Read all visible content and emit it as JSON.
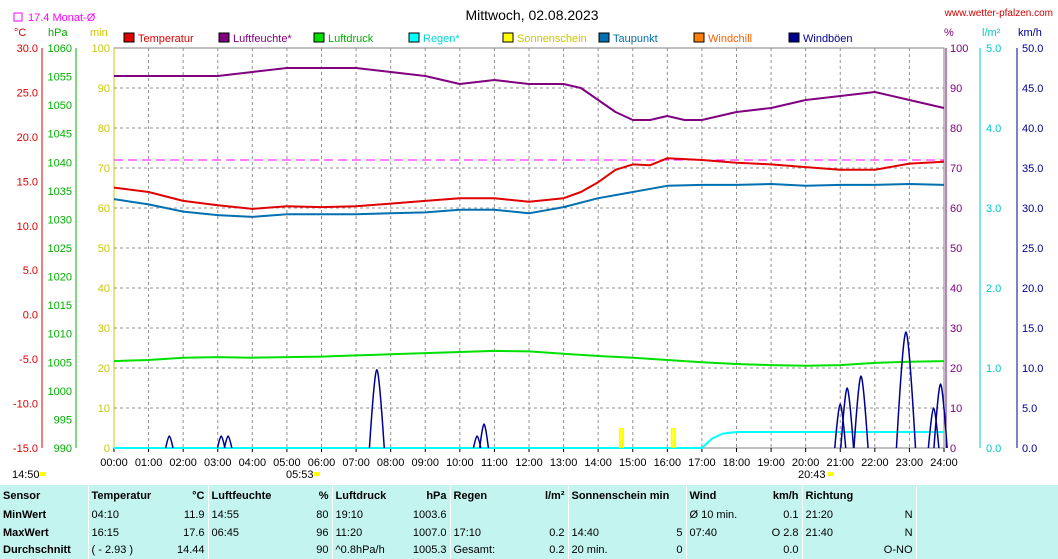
{
  "header": {
    "title": "Mittwoch, 02.08.2023",
    "site": "www.wetter-pfalzen.com",
    "monthly_avg": "17.4 Monat-Ø",
    "sunrise": "05:53",
    "sunset": "20:43",
    "update_time": "14:50"
  },
  "units": {
    "temp": "°C",
    "pressure": "hPa",
    "sunshine": "min",
    "humidity": "%",
    "rain": "l/m²",
    "wind": "km/h"
  },
  "colors": {
    "temperatur": "#e00000",
    "luftfeuchte": "#800080",
    "luftdruck": "#00e000",
    "regen": "#00ffff",
    "sonnenschein": "#ffff00",
    "taupunkt": "#0070b0",
    "windchill": "#ff8000",
    "windboeen": "#000090",
    "monthly": "#ff00ff",
    "summary_bg": "#c4f4f0"
  },
  "chart_data": {
    "type": "line",
    "x_ticks": [
      "00:00",
      "01:00",
      "02:00",
      "03:00",
      "04:00",
      "05:00",
      "06:00",
      "07:00",
      "08:00",
      "09:00",
      "10:00",
      "11:00",
      "12:00",
      "13:00",
      "14:00",
      "15:00",
      "16:00",
      "17:00",
      "18:00",
      "19:00",
      "20:00",
      "21:00",
      "22:00",
      "23:00",
      "24:00"
    ],
    "axes": {
      "temp": {
        "ticks": [
          "30.0",
          "25.0",
          "20.0",
          "15.0",
          "10.0",
          "5.0",
          "0.0",
          "-5.0",
          "-10.0",
          "-15.0"
        ],
        "range": [
          -15,
          30
        ]
      },
      "pressure": {
        "ticks": [
          "1060",
          "1055",
          "1050",
          "1045",
          "1040",
          "1035",
          "1030",
          "1025",
          "1020",
          "1015",
          "1010",
          "1005",
          "1000",
          "995",
          "990"
        ],
        "range": [
          990,
          1060
        ]
      },
      "sunshine": {
        "ticks": [
          "100",
          "90",
          "80",
          "70",
          "60",
          "50",
          "40",
          "30",
          "20",
          "10",
          "0"
        ],
        "range": [
          0,
          100
        ]
      },
      "humidity": {
        "ticks": [
          "100",
          "90",
          "80",
          "70",
          "60",
          "50",
          "40",
          "30",
          "20",
          "10",
          "0"
        ],
        "range": [
          0,
          100
        ]
      },
      "rain": {
        "ticks": [
          "5.0",
          "4.0",
          "3.0",
          "2.0",
          "1.0",
          "0.0"
        ],
        "range": [
          0,
          5
        ]
      },
      "wind": {
        "ticks": [
          "50.0",
          "45.0",
          "40.0",
          "35.0",
          "30.0",
          "25.0",
          "20.0",
          "15.0",
          "10.0",
          "5.0",
          "0.0"
        ],
        "range": [
          0,
          50
        ]
      }
    },
    "legend": [
      "Temperatur",
      "Luftfeuchte*",
      "Luftdruck",
      "Regen*",
      "Sonnenschein",
      "Taupunkt",
      "Windchill",
      "Windböen"
    ],
    "monthly_avg_temp": 17.4,
    "series": [
      {
        "name": "Temperatur",
        "axis": "temp",
        "x": [
          0,
          1,
          2,
          3,
          4,
          5,
          6,
          7,
          8,
          9,
          10,
          11,
          12,
          13,
          13.5,
          14,
          14.5,
          15,
          15.5,
          16,
          16.5,
          17,
          18,
          19,
          20,
          21,
          22,
          23,
          24
        ],
        "values": [
          14.3,
          13.8,
          12.8,
          12.3,
          11.9,
          12.2,
          12.1,
          12.2,
          12.5,
          12.8,
          13.1,
          13.1,
          12.7,
          13.1,
          13.8,
          14.9,
          16.3,
          16.9,
          16.8,
          17.6,
          17.5,
          17.4,
          17.1,
          16.9,
          16.6,
          16.3,
          16.3,
          17.0,
          17.2
        ]
      },
      {
        "name": "Luftfeuchte*",
        "axis": "humidity",
        "x": [
          0,
          1,
          2,
          3,
          4,
          5,
          6,
          7,
          8,
          9,
          10,
          11,
          12,
          13,
          13.5,
          14,
          14.5,
          15,
          15.5,
          16,
          16.5,
          17,
          18,
          19,
          20,
          21,
          22,
          23,
          24
        ],
        "values": [
          93,
          93,
          93,
          93,
          94,
          95,
          95,
          95,
          94,
          93,
          91,
          92,
          91,
          91,
          90,
          87,
          84,
          82,
          82,
          83,
          82,
          82,
          84,
          85,
          87,
          88,
          89,
          87,
          85
        ]
      },
      {
        "name": "Luftdruck",
        "axis": "pressure",
        "x": [
          0,
          1,
          2,
          3,
          4,
          5,
          6,
          7,
          8,
          9,
          10,
          11,
          12,
          13,
          14,
          15,
          16,
          17,
          18,
          19,
          20,
          21,
          22,
          23,
          24
        ],
        "values": [
          1005.2,
          1005.4,
          1005.8,
          1005.9,
          1005.8,
          1005.9,
          1006.0,
          1006.2,
          1006.4,
          1006.6,
          1006.8,
          1007.0,
          1006.9,
          1006.5,
          1006.1,
          1005.8,
          1005.4,
          1005.0,
          1004.7,
          1004.5,
          1004.4,
          1004.5,
          1004.9,
          1005.1,
          1005.2
        ]
      },
      {
        "name": "Taupunkt",
        "axis": "temp",
        "x": [
          0,
          1,
          2,
          3,
          4,
          5,
          6,
          7,
          8,
          9,
          10,
          11,
          12,
          13,
          14,
          15,
          16,
          17,
          18,
          19,
          20,
          21,
          22,
          23,
          24
        ],
        "values": [
          13.0,
          12.4,
          11.6,
          11.2,
          11.0,
          11.3,
          11.3,
          11.3,
          11.4,
          11.5,
          11.8,
          11.8,
          11.4,
          12.1,
          13.1,
          13.8,
          14.5,
          14.6,
          14.6,
          14.7,
          14.5,
          14.6,
          14.6,
          14.7,
          14.6
        ]
      },
      {
        "name": "Regen*",
        "axis": "rain",
        "x": [
          0,
          17,
          17.3,
          17.6,
          18,
          19,
          20,
          21,
          22,
          23,
          24
        ],
        "values": [
          0,
          0,
          0.12,
          0.18,
          0.2,
          0.2,
          0.2,
          0.2,
          0.2,
          0.2,
          0.2
        ]
      },
      {
        "name": "Windböen",
        "axis": "wind",
        "bursts": [
          [
            1.6,
            1.5
          ],
          [
            3.1,
            1.5
          ],
          [
            3.3,
            1.5
          ],
          [
            7.6,
            9.8
          ],
          [
            10.5,
            1.5
          ],
          [
            10.7,
            3.0
          ],
          [
            21.0,
            5.5
          ],
          [
            21.2,
            7.5
          ],
          [
            21.6,
            9.0
          ],
          [
            22.9,
            14.5
          ],
          [
            23.7,
            5.0
          ],
          [
            23.9,
            8.0
          ]
        ]
      },
      {
        "name": "Sonnenschein",
        "axis": "sunshine",
        "bars": [
          [
            14.6,
            5
          ],
          [
            16.1,
            5
          ]
        ]
      }
    ]
  },
  "summary": {
    "headers": {
      "sensor": "Sensor",
      "temp": "Temperatur",
      "temp_unit": "°C",
      "hum": "Luftfeuchte",
      "hum_unit": "%",
      "press": "Luftdruck",
      "press_unit": "hPa",
      "rain": "Regen",
      "rain_unit": "l/m²",
      "sun": "Sonnenschein min",
      "wind": "Wind",
      "wind_unit": "km/h",
      "dir": "Richtung"
    },
    "rows": [
      {
        "label": "MinWert",
        "temp_time": "04:10",
        "temp_val": "11.9",
        "hum_time": "14:55",
        "hum_val": "80",
        "press_time": "19:10",
        "press_val": "1003.6",
        "rain_time": "",
        "rain_val": "",
        "sun_time": "",
        "sun_val": "",
        "wind_label": "Ø 10 min.",
        "wind_val": "0.1",
        "dir_time": "21:20",
        "dir_val": "N"
      },
      {
        "label": "MaxWert",
        "temp_time": "16:15",
        "temp_val": "17.6",
        "hum_time": "06:45",
        "hum_val": "96",
        "press_time": "11:20",
        "press_val": "1007.0",
        "rain_time": "17:10",
        "rain_val": "0.2",
        "sun_time": "14:40",
        "sun_val": "5",
        "wind_label": "07:40",
        "wind_val": "O 2.8",
        "dir_time": "21:40",
        "dir_val": "N"
      },
      {
        "label": "Durchschnitt",
        "temp_time": "( - 2.93 )",
        "temp_val": "14.44",
        "hum_time": "",
        "hum_val": "90",
        "press_time": "^0.8hPa/h",
        "press_val": "1005.3",
        "rain_time": "Gesamt:",
        "rain_val": "0.2",
        "sun_time": "20 min.",
        "sun_val": "0",
        "wind_label": "",
        "wind_val": "0.0",
        "dir_time": "",
        "dir_val": "O-NO"
      }
    ]
  }
}
